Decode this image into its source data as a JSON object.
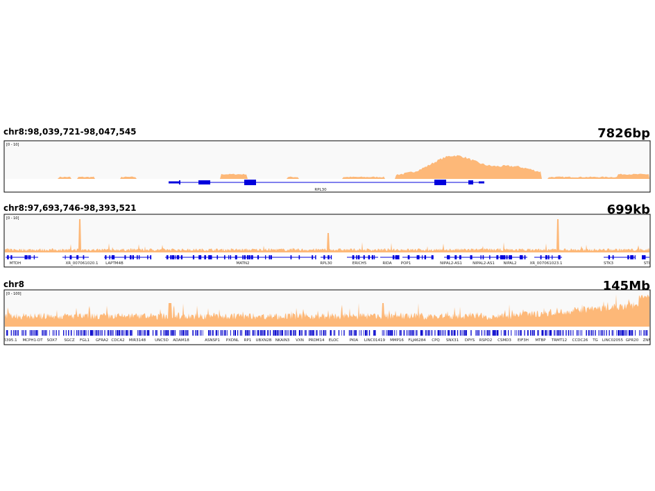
{
  "panels": [
    {
      "locus": "chr8:98,039,721-98,047,545",
      "span": "7826bp",
      "range": "[0 - 10]",
      "genes": [
        "RPL30"
      ]
    },
    {
      "locus": "chr8:97,693,746-98,393,521",
      "span": "699kb",
      "range": "[0 - 10]",
      "genes": [
        "MTDH",
        "XR_007061020.1",
        "LAPTM4B",
        "MATN2",
        "RPL30",
        "ERICH5",
        "RIDA",
        "POP1",
        "NIPAL2-AS1",
        "NIPAL2-AS1",
        "NIPAL2",
        "XR_007061023.1",
        "STK3",
        "STI"
      ]
    },
    {
      "locus": "chr8",
      "span": "145Mb",
      "range": "[0 - 100]",
      "genes": [
        "6395.1",
        "MCPH1-DT",
        "SOX7",
        "SGCZ",
        "FGL1",
        "GFRA2",
        "CDCA2",
        "MIR3148",
        "UNC5D",
        "ADAM18",
        "ASNSP1",
        "PXDNL",
        "RP1",
        "UBXN2B",
        "NKAIN3",
        "VXN",
        "PRDM14",
        "ELOC",
        "PKIA",
        "LINC01419",
        "MMP16",
        "FLJ46284",
        "CPQ",
        "SNX31",
        "DPYS",
        "RSPO2",
        "CSMD3",
        "EIF3H",
        "MTBP",
        "TRMT12",
        "CCDC26",
        "TG",
        "LINC02055",
        "GPR20",
        "ZNF"
      ]
    }
  ]
}
